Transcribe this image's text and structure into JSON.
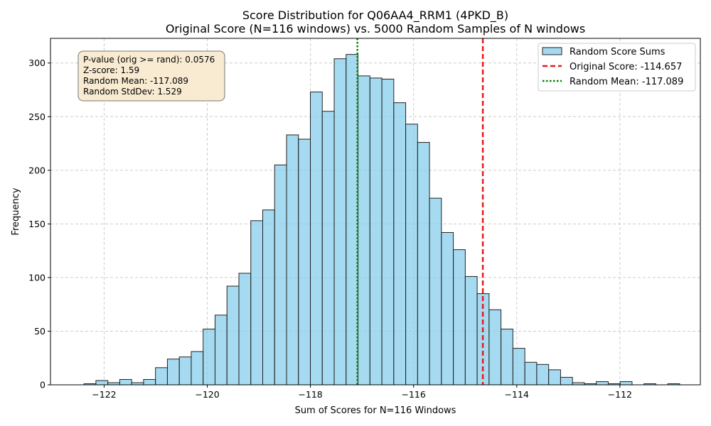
{
  "chart_data": {
    "type": "bar",
    "title": "Score Distribution for Q06AA4_RRM1 (4PKD_B)",
    "subtitle": "Original Score (N=116 windows) vs. 5000 Random Samples of N windows",
    "xlabel": "Sum of Scores for N=116 Windows",
    "ylabel": "Frequency",
    "xlim": [
      -123.04,
      -110.44
    ],
    "ylim": [
      0,
      323
    ],
    "x_ticks": [
      -122,
      -120,
      -118,
      -116,
      -114,
      -112
    ],
    "x_tick_labels": [
      "−122",
      "−120",
      "−118",
      "−116",
      "−114",
      "−112"
    ],
    "y_ticks": [
      0,
      50,
      100,
      150,
      200,
      250,
      300
    ],
    "y_tick_labels": [
      "0",
      "50",
      "100",
      "150",
      "200",
      "250",
      "300"
    ],
    "grid": true,
    "bin_edges_start": -122.39,
    "bin_width": 0.231,
    "values": [
      1,
      4,
      2,
      5,
      2,
      5,
      16,
      24,
      26,
      31,
      52,
      65,
      92,
      104,
      153,
      163,
      205,
      233,
      229,
      273,
      255,
      304,
      308,
      288,
      286,
      285,
      263,
      243,
      226,
      174,
      142,
      126,
      101,
      85,
      70,
      52,
      34,
      21,
      19,
      14,
      7,
      2,
      1,
      3,
      1,
      3,
      0,
      1,
      0,
      1
    ],
    "bar_color": "#87ceeb",
    "bar_edge_color": "#222222",
    "original_score": -114.657,
    "random_mean": -117.089,
    "original_line_color": "#e41a1c",
    "mean_line_color": "#008000",
    "legend_position": "top-right",
    "legend": [
      {
        "label": "Random Score Sums",
        "style": "patch"
      },
      {
        "label": "Original Score: -114.657",
        "style": "dashed-red"
      },
      {
        "label": "Random Mean: -117.089",
        "style": "dotted-green"
      }
    ],
    "stats_box": [
      "P-value (orig >= rand): 0.0576",
      "Z-score: 1.59",
      "Random Mean: -117.089",
      "Random StdDev: 1.529"
    ]
  }
}
